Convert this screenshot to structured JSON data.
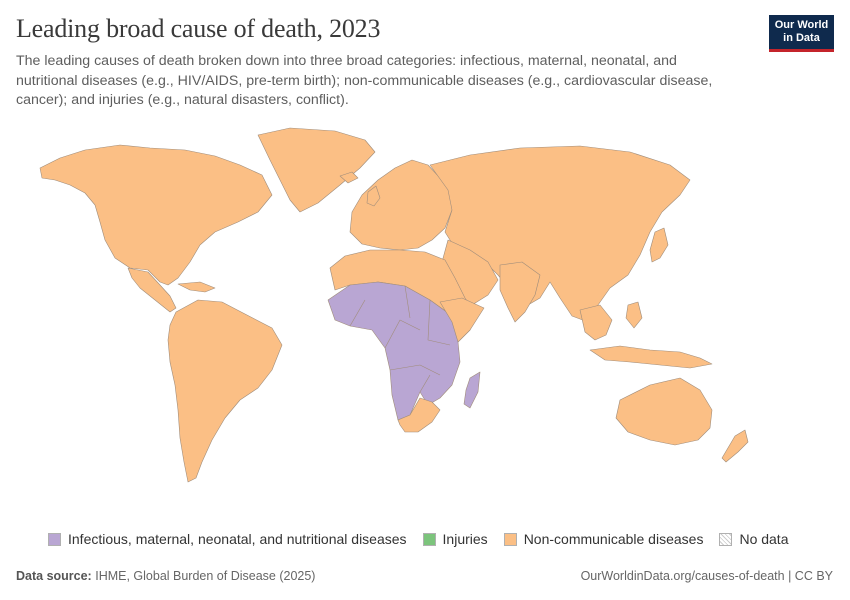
{
  "header": {
    "title": "Leading broad cause of death, 2023",
    "subtitle": "The leading causes of death broken down into three broad categories: infectious, maternal, neonatal, and nutritional diseases (e.g., HIV/AIDS, pre-term birth); non-communicable diseases (e.g., cardiovascular disease, cancer); and injuries (e.g., natural disasters, conflict).",
    "logo_line1": "Our World",
    "logo_line2": "in Data"
  },
  "colors": {
    "infectious": "#b9a6d3",
    "injuries": "#7cc47c",
    "noncommunicable": "#fbbf85",
    "border": "#9e8a78",
    "nodata": "#f2f2f2",
    "logo_bg": "#0f2a4d",
    "logo_accent": "#c4242b"
  },
  "legend": [
    {
      "label": "Infectious, maternal, neonatal, and nutritional diseases",
      "color": "#b9a6d3"
    },
    {
      "label": "Injuries",
      "color": "#7cc47c"
    },
    {
      "label": "Non-communicable diseases",
      "color": "#fbbf85"
    },
    {
      "label": "No data",
      "color": "nodata"
    }
  ],
  "map_data": {
    "infectious_region": "Sub-Saharan Africa (Sahel, West, Central, East and parts of Southern Africa), Madagascar",
    "noncommunicable_region": "Americas, Europe, North Africa, Middle East, Asia, Oceania, South Africa"
  },
  "footer": {
    "source_label": "Data source:",
    "source_value": "IHME, Global Burden of Disease (2025)",
    "url_license": "OurWorldinData.org/causes-of-death | CC BY"
  }
}
